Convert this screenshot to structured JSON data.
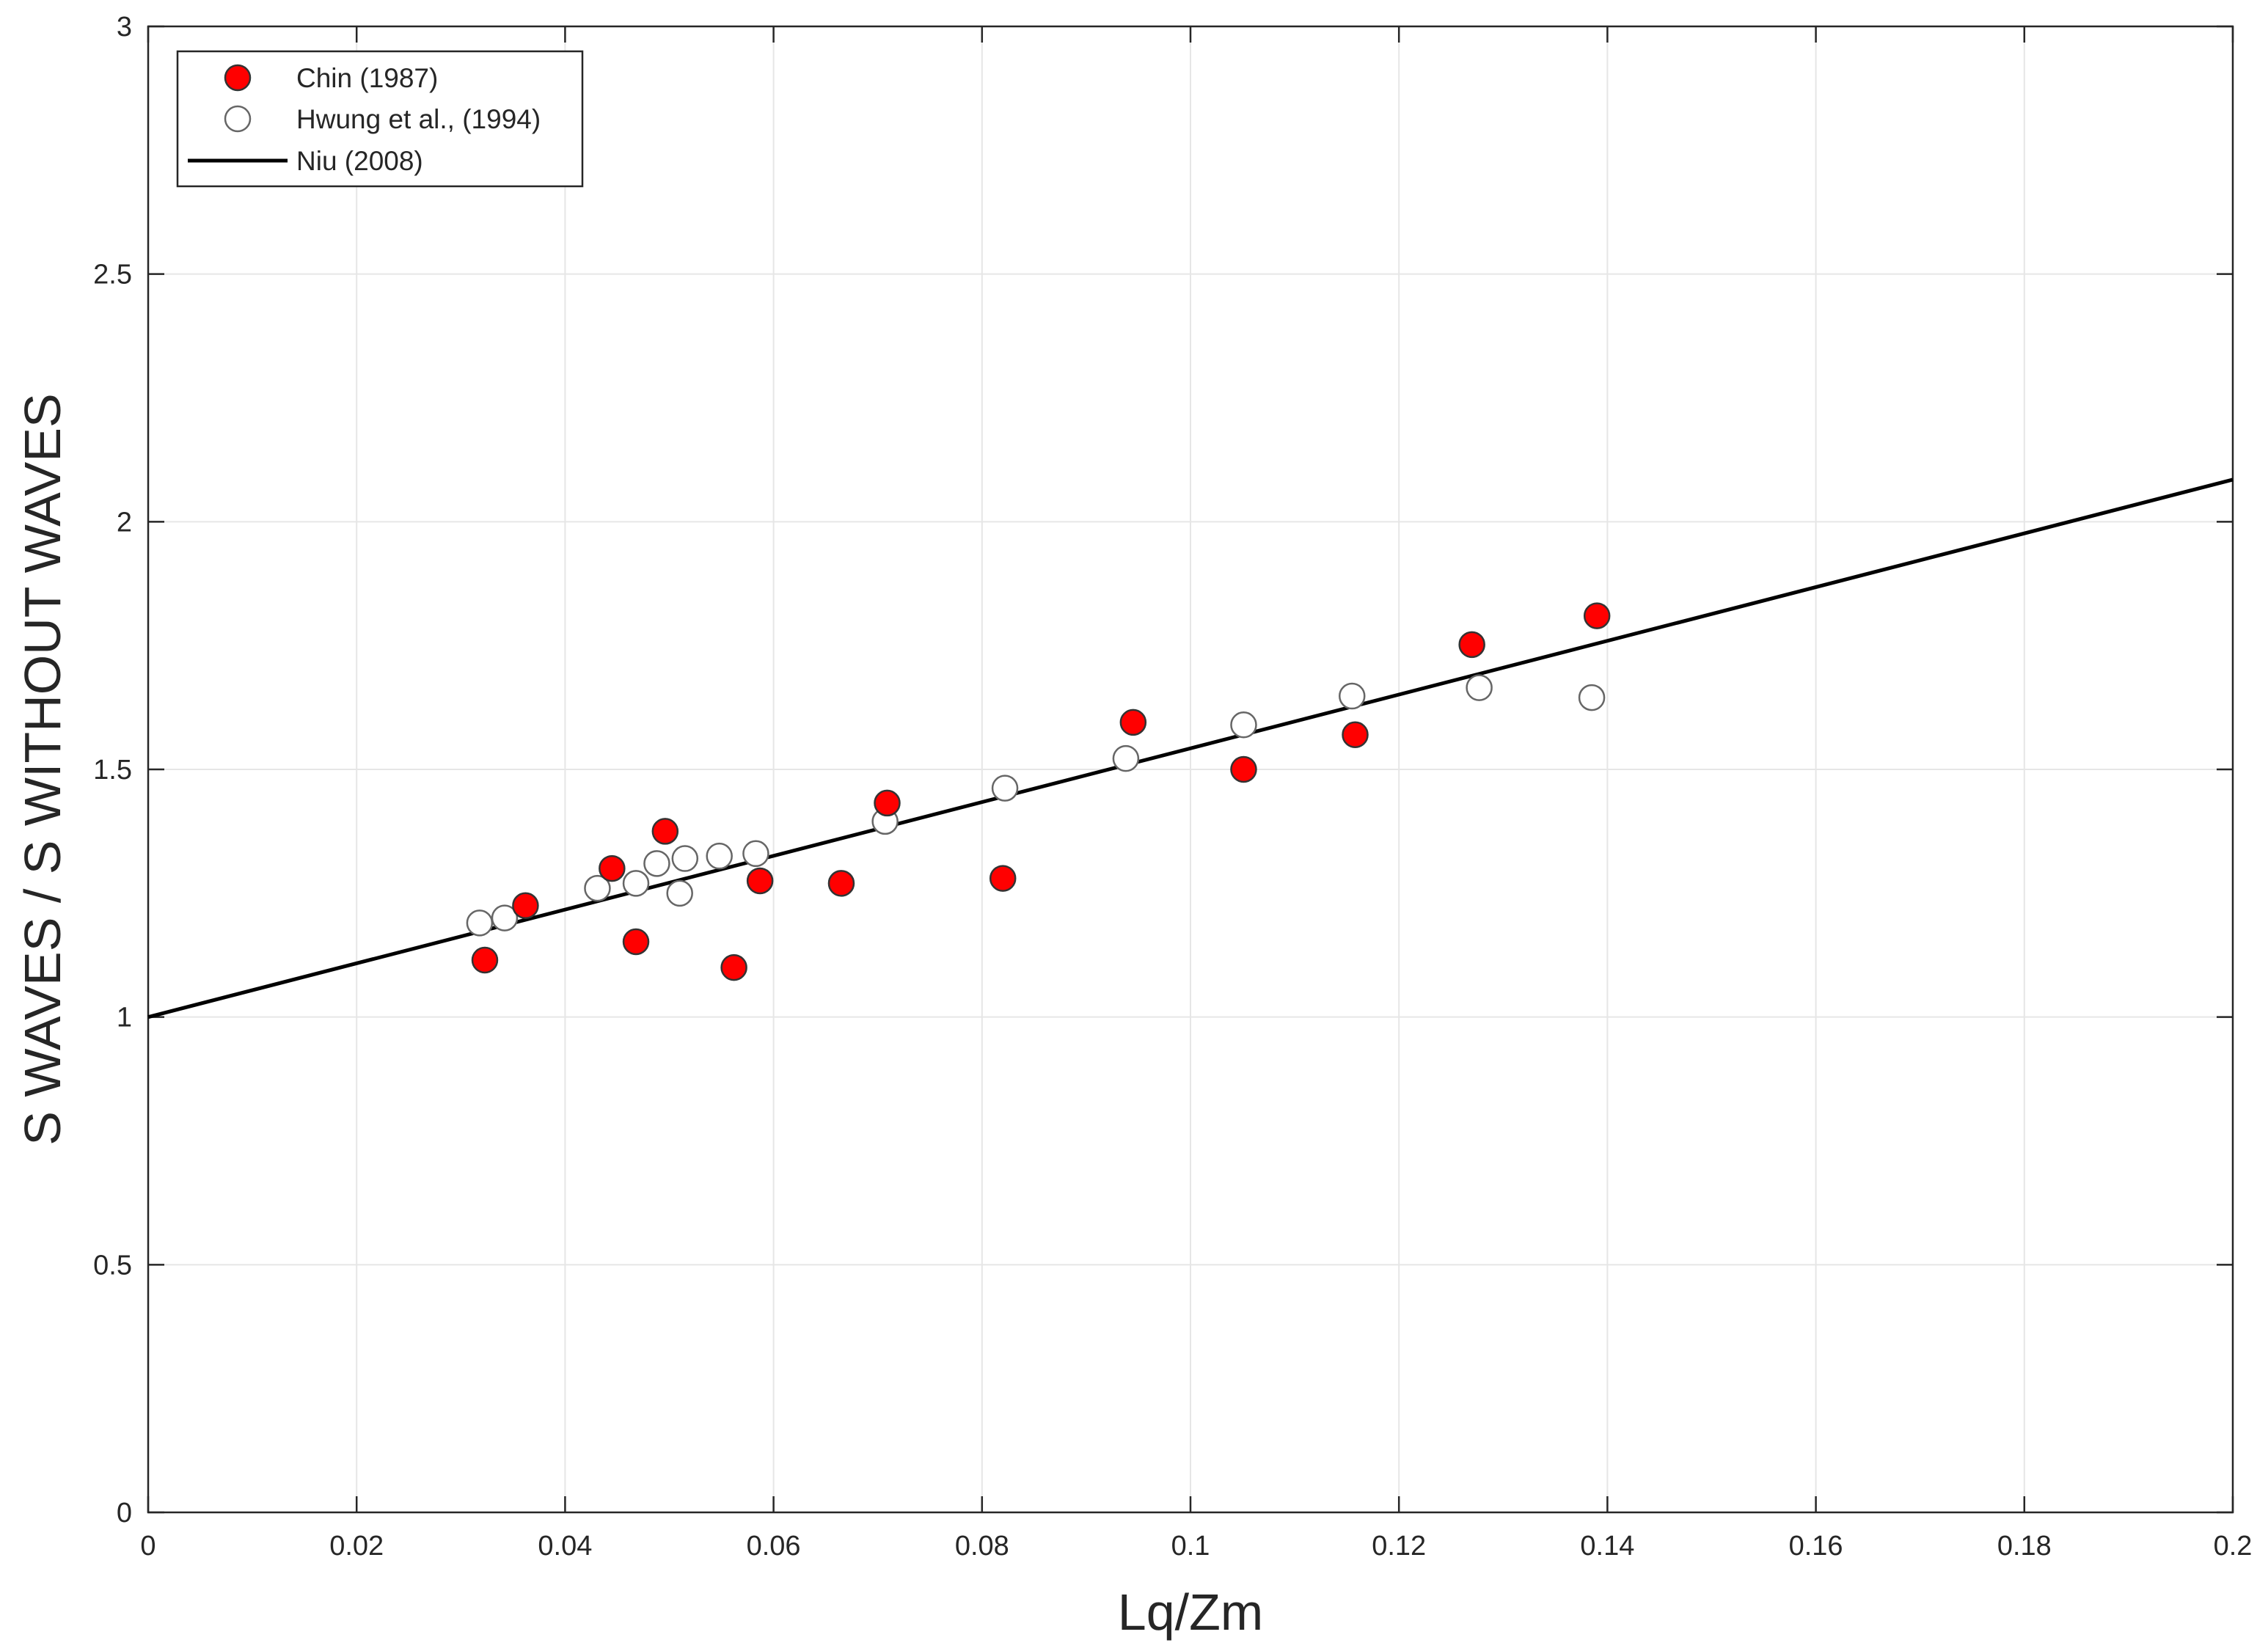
{
  "chart_data": {
    "type": "scatter",
    "xlabel": "Lq/Zm",
    "ylabel": "S WAVES / S WITHOUT WAVES",
    "xlim": [
      0,
      0.2
    ],
    "ylim": [
      0,
      3
    ],
    "x_ticks": [
      "0",
      "0.02",
      "0.04",
      "0.06",
      "0.08",
      "0.1",
      "0.12",
      "0.14",
      "0.16",
      "0.18",
      "0.2"
    ],
    "y_ticks": [
      "0",
      "0.5",
      "1",
      "1.5",
      "2",
      "2.5",
      "3"
    ],
    "grid": true,
    "legend_position": "top-left",
    "series": [
      {
        "name": "Chin (1987)",
        "marker": "filled-circle",
        "color": "#ff0000",
        "points": [
          {
            "x": 0.0323,
            "y": 1.115
          },
          {
            "x": 0.0362,
            "y": 1.225
          },
          {
            "x": 0.0445,
            "y": 1.3
          },
          {
            "x": 0.0468,
            "y": 1.152
          },
          {
            "x": 0.0496,
            "y": 1.375
          },
          {
            "x": 0.0562,
            "y": 1.1
          },
          {
            "x": 0.0587,
            "y": 1.275
          },
          {
            "x": 0.0665,
            "y": 1.27
          },
          {
            "x": 0.0709,
            "y": 1.432
          },
          {
            "x": 0.082,
            "y": 1.28
          },
          {
            "x": 0.0945,
            "y": 1.595
          },
          {
            "x": 0.1051,
            "y": 1.5
          },
          {
            "x": 0.1158,
            "y": 1.57
          },
          {
            "x": 0.127,
            "y": 1.752
          },
          {
            "x": 0.139,
            "y": 1.81
          }
        ]
      },
      {
        "name": "Hwung et al., (1994)",
        "marker": "open-circle",
        "color": "#ffffff",
        "points": [
          {
            "x": 0.0318,
            "y": 1.19
          },
          {
            "x": 0.0342,
            "y": 1.2
          },
          {
            "x": 0.0431,
            "y": 1.26
          },
          {
            "x": 0.0468,
            "y": 1.27
          },
          {
            "x": 0.0488,
            "y": 1.31
          },
          {
            "x": 0.051,
            "y": 1.25
          },
          {
            "x": 0.0515,
            "y": 1.32
          },
          {
            "x": 0.0548,
            "y": 1.325
          },
          {
            "x": 0.0583,
            "y": 1.33
          },
          {
            "x": 0.0707,
            "y": 1.395
          },
          {
            "x": 0.0822,
            "y": 1.462
          },
          {
            "x": 0.0938,
            "y": 1.522
          },
          {
            "x": 0.1051,
            "y": 1.59
          },
          {
            "x": 0.1155,
            "y": 1.648
          },
          {
            "x": 0.1277,
            "y": 1.665
          },
          {
            "x": 0.1385,
            "y": 1.645
          }
        ]
      },
      {
        "name": "Niu (2008)",
        "marker": "line",
        "color": "#000000",
        "line": [
          {
            "x": 0,
            "y": 1.0
          },
          {
            "x": 0.2,
            "y": 2.085
          }
        ]
      }
    ]
  }
}
